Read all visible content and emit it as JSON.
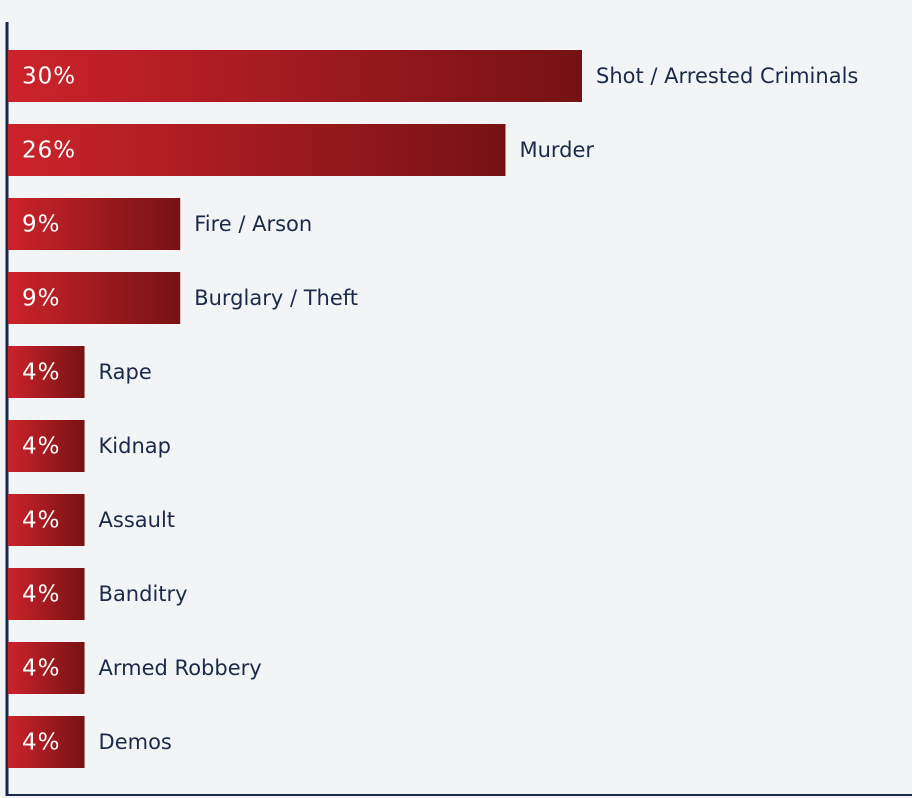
{
  "chart_data": {
    "type": "barh",
    "categories": [
      "Shot  / Arrested Criminals",
      "Murder",
      "Fire / Arson",
      "Burglary / Theft",
      "Rape",
      "Kidnap",
      "Assault",
      "Banditry",
      "Armed Robbery",
      "Demos"
    ],
    "values": [
      30,
      26,
      9,
      9,
      4,
      4,
      4,
      4,
      4,
      4
    ],
    "value_labels": [
      "30%",
      "26%",
      "9%",
      "9%",
      "4%",
      "4%",
      "4%",
      "4%",
      "4%",
      "4%"
    ],
    "xlim": [
      0,
      30
    ],
    "color": "#cc232b",
    "color_end": "#761214"
  }
}
